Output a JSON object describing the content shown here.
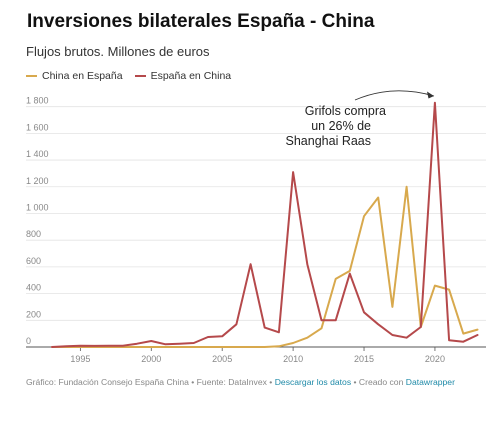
{
  "title": "Inversiones bilaterales España - China",
  "subtitle": "Flujos brutos. Millones de euros",
  "legend": [
    {
      "label": "China en España",
      "color": "#d8a94d"
    },
    {
      "label": "España en China",
      "color": "#b5494b"
    }
  ],
  "annotation": {
    "lines": [
      "Grifols compra",
      "un 26% de",
      "Shanghai Raas"
    ]
  },
  "footer": {
    "prefix": "Gráfico: Fundación Consejo España China • Fuente: DataInvex • ",
    "download": "Descargar los datos",
    "middle": " • Creado con ",
    "tool": "Datawrapper"
  },
  "chart_data": {
    "type": "line",
    "x": [
      1993,
      1994,
      1995,
      1996,
      1997,
      1998,
      1999,
      2000,
      2001,
      2002,
      2003,
      2004,
      2005,
      2006,
      2007,
      2008,
      2009,
      2010,
      2011,
      2012,
      2013,
      2014,
      2015,
      2016,
      2017,
      2018,
      2019,
      2020,
      2021,
      2022,
      2023
    ],
    "series": [
      {
        "name": "China en España",
        "color": "#d8a94d",
        "values": [
          0,
          0,
          0,
          0,
          0,
          0,
          0,
          0,
          0,
          0,
          0,
          0,
          0,
          0,
          0,
          0,
          5,
          30,
          70,
          140,
          510,
          570,
          980,
          1120,
          300,
          1200,
          150,
          460,
          430,
          100,
          130
        ]
      },
      {
        "name": "España en China",
        "color": "#b5494b",
        "values": [
          0,
          5,
          10,
          8,
          10,
          10,
          25,
          45,
          20,
          25,
          30,
          75,
          80,
          170,
          620,
          145,
          110,
          1310,
          620,
          200,
          200,
          550,
          260,
          170,
          90,
          70,
          150,
          1830,
          50,
          40,
          90
        ]
      }
    ],
    "xticks": [
      "1995",
      "2000",
      "2005",
      "2010",
      "2015",
      "2020"
    ],
    "yticks": [
      "0",
      "200",
      "400",
      "600",
      "800",
      "1 000",
      "1 200",
      "1 400",
      "1 600",
      "1 800"
    ],
    "xlim": [
      1993,
      2023.6
    ],
    "ylim": [
      0,
      1850
    ],
    "grid": true
  }
}
